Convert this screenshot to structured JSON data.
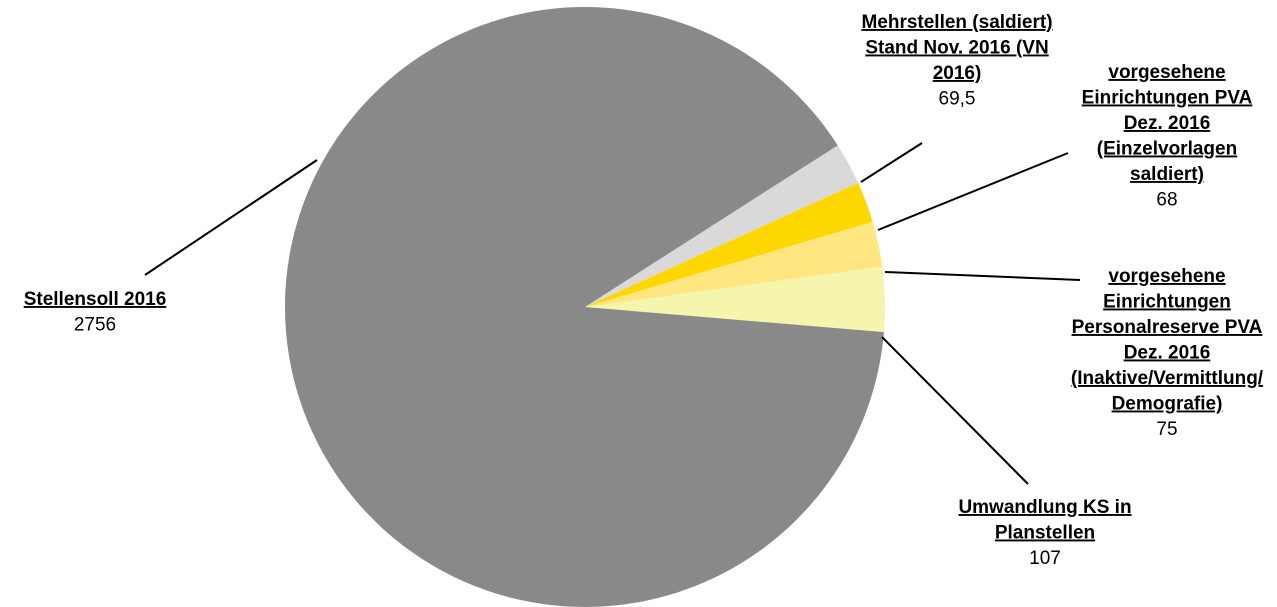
{
  "chart_data": {
    "type": "pie",
    "slices": [
      {
        "label_lines": [
          "Stellensoll 2016"
        ],
        "value": 2756,
        "value_label": "2756",
        "color": "#898989"
      },
      {
        "label_lines": [
          "Mehrstellen (saldiert)",
          "Stand Nov. 2016 (VN",
          "2016)"
        ],
        "value": 69.5,
        "value_label": "69,5",
        "color": "#d9d9d9"
      },
      {
        "label_lines": [
          "vorgesehene",
          "Einrichtungen PVA",
          "Dez. 2016",
          "(Einzelvorlagen",
          "saldiert)"
        ],
        "value": 68,
        "value_label": "68",
        "color": "#ffd700"
      },
      {
        "label_lines": [
          "vorgesehene",
          "Einrichtungen",
          "Personalreserve PVA",
          "Dez. 2016",
          "(Inaktive/Vermittlung/",
          "Demografie)"
        ],
        "value": 75,
        "value_label": "75",
        "color": "#ffe680"
      },
      {
        "label_lines": [
          "Umwandlung KS in",
          "Planstellen"
        ],
        "value": 107,
        "value_label": "107",
        "color": "#f6f5ae"
      }
    ]
  }
}
